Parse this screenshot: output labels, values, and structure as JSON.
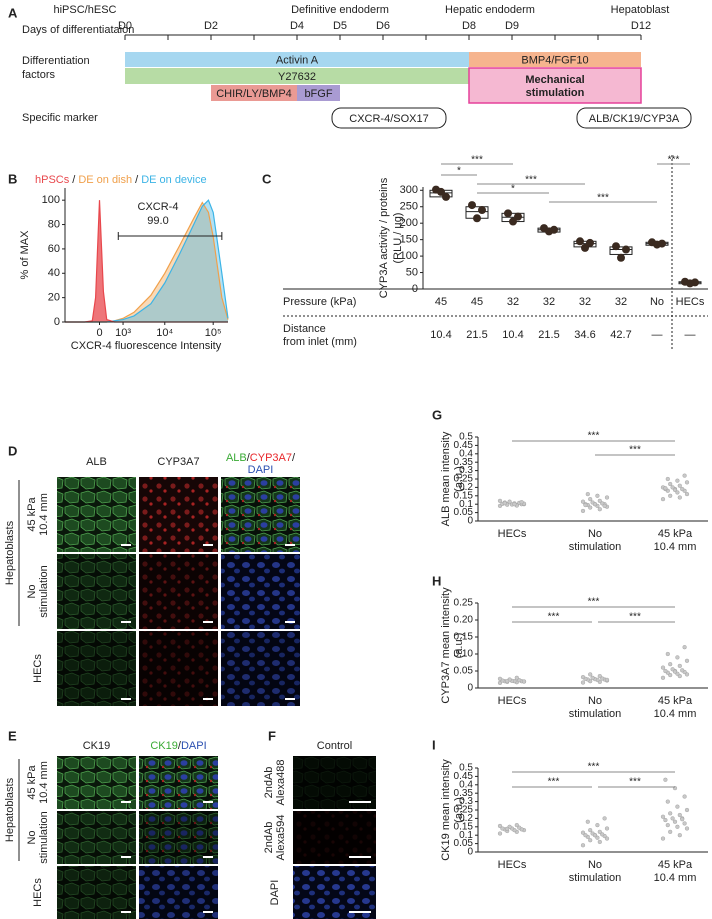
{
  "figure": {
    "panel_letters": [
      "A",
      "B",
      "C",
      "D",
      "E",
      "F",
      "G",
      "H",
      "I"
    ],
    "panel_a": {
      "stages": [
        "hiPSC/hESC",
        "Definitive endoderm",
        "Hepatic endoderm",
        "Hepatoblast"
      ],
      "days_label": "Days of differentiataion",
      "days": [
        "D0",
        "D2",
        "D4",
        "D5",
        "D6",
        "D8",
        "D9",
        "D12"
      ],
      "factors_label": [
        "Differentiation",
        "factors"
      ],
      "factors": [
        "Activin A",
        "BMP4/FGF10",
        "Y27632",
        "CHIR/LY/BMP4",
        "bFGF"
      ],
      "mechanical": [
        "Mechanical",
        "stimulation"
      ],
      "marker_label": "Specific marker",
      "markers": [
        "CXCR-4/SOX17",
        "ALB/CK19/CYP3A"
      ]
    },
    "panel_d": {
      "channels": [
        "ALB",
        "CYP3A7"
      ],
      "merge": [
        "ALB",
        "/",
        "CYP3A7",
        "/",
        "DAPI"
      ],
      "group_label": "Hepatoblasts",
      "rows": [
        [
          "45 kPa",
          "10.4 mm"
        ],
        [
          "No",
          "stimulation"
        ],
        [
          "HECs"
        ]
      ]
    },
    "panel_e": {
      "channels": [
        "CK19"
      ],
      "merge": [
        "CK19",
        "/",
        "DAPI"
      ],
      "group_label": "Hepatoblasts",
      "rows": [
        [
          "45 kPa",
          "10.4 mm"
        ],
        [
          "No",
          "stimulation"
        ],
        [
          "HECs"
        ]
      ]
    },
    "panel_f": {
      "title": "Control",
      "rows": [
        [
          "2ndAb",
          "Alexa488"
        ],
        [
          "2ndAb",
          "Alexa594"
        ],
        [
          "DAPI"
        ]
      ]
    }
  },
  "chart_data": [
    {
      "type": "area",
      "legend_separator": "/",
      "ylabel": "% of MAX",
      "xlabel": "CXCR-4 fluorescence Intensity",
      "x_scale": "logicle",
      "x": [
        -2000,
        -500,
        -200,
        -100,
        0,
        100,
        200,
        500,
        1000,
        2000,
        5000,
        10000,
        20000,
        40000,
        60000,
        80000,
        100000,
        150000,
        200000
      ],
      "series": [
        {
          "name": "hPSCs",
          "color": "#e8474c",
          "values": [
            0,
            0,
            1,
            20,
            100,
            25,
            2,
            0,
            0,
            0,
            0,
            0,
            0,
            0,
            0,
            0,
            0,
            0,
            0
          ]
        },
        {
          "name": "DE on dish",
          "color": "#f0a04b",
          "values": [
            0,
            0,
            0,
            0,
            0,
            0,
            0,
            1,
            3,
            8,
            22,
            40,
            62,
            85,
            98,
            90,
            70,
            20,
            2
          ]
        },
        {
          "name": "DE on device",
          "color": "#3cb4e6",
          "values": [
            0,
            0,
            0,
            0,
            0,
            0,
            0,
            1,
            2,
            5,
            15,
            32,
            55,
            80,
            95,
            100,
            90,
            40,
            3
          ]
        }
      ],
      "xlim": [
        -2000,
        200000
      ],
      "xticks": [
        0,
        {
          "value": 1000,
          "label": "10³"
        },
        {
          "value": 10000,
          "label": "10⁴"
        },
        {
          "value": 100000,
          "label": "10⁵"
        }
      ],
      "ylim": [
        0,
        110
      ],
      "yticks": [
        0,
        20,
        40,
        60,
        80,
        100
      ],
      "annotation": [
        "CXCR-4",
        "99.0"
      ],
      "gate": [
        700,
        150000
      ]
    },
    {
      "type": "box",
      "ylabel": [
        "CYP3A activity / proteins",
        "(RLU / µg)"
      ],
      "ylim": [
        0,
        310
      ],
      "yticks": [
        0,
        50,
        100,
        150,
        200,
        250,
        300
      ],
      "points": [
        [
          302,
          280,
          295
        ],
        [
          255,
          240,
          215
        ],
        [
          230,
          220,
          205
        ],
        [
          185,
          180,
          175
        ],
        [
          145,
          140,
          125
        ],
        [
          130,
          120,
          95
        ],
        [
          142,
          138,
          135
        ],
        [
          22,
          20,
          17
        ]
      ],
      "box_low": [
        280,
        215,
        205,
        173,
        128,
        105,
        133,
        16
      ],
      "box_high": [
        300,
        250,
        230,
        185,
        145,
        128,
        142,
        22
      ],
      "median": [
        292,
        235,
        218,
        180,
        138,
        120,
        138,
        20
      ],
      "significance": [
        "***",
        "*",
        "***",
        "*",
        "***",
        "***"
      ],
      "pressure_label": "Pressure (kPa)",
      "pressure": [
        "45",
        "45",
        "32",
        "32",
        "32",
        "32",
        "No",
        "HECs"
      ],
      "distance_label": [
        "Distance",
        "from inlet (mm)"
      ],
      "distance": [
        "10.4",
        "21.5",
        "10.4",
        "21.5",
        "34.6",
        "42.7",
        "—",
        "—"
      ],
      "color": "#3a2a20"
    },
    {
      "type": "swarm",
      "ylabel": [
        "ALB mean intensity",
        "(a.u.)"
      ],
      "categories": [
        [
          "HECs"
        ],
        [
          "No",
          "stimulation"
        ],
        [
          "45 kPa",
          "10.4 mm"
        ]
      ],
      "values": [
        [
          0.09,
          0.095,
          0.1,
          0.1,
          0.105,
          0.11,
          0.1,
          0.098,
          0.102,
          0.108,
          0.115,
          0.12,
          0.092,
          0.097,
          0.103,
          0.1,
          0.106,
          0.112
        ],
        [
          0.06,
          0.07,
          0.08,
          0.085,
          0.09,
          0.095,
          0.1,
          0.1,
          0.1,
          0.105,
          0.11,
          0.115,
          0.12,
          0.13,
          0.14,
          0.15,
          0.16,
          0.09,
          0.1,
          0.095
        ],
        [
          0.13,
          0.14,
          0.15,
          0.16,
          0.17,
          0.18,
          0.18,
          0.19,
          0.19,
          0.19,
          0.2,
          0.2,
          0.21,
          0.22,
          0.23,
          0.24,
          0.25,
          0.27,
          0.185,
          0.195
        ]
      ],
      "color": "#c8c8c8",
      "ylim": [
        0,
        0.5
      ],
      "yticks": [
        0,
        0.05,
        0.1,
        0.15,
        0.2,
        0.25,
        0.3,
        0.35,
        0.4,
        0.45,
        0.5
      ],
      "significance": [
        "***",
        "***"
      ]
    },
    {
      "type": "swarm",
      "ylabel": [
        "CYP3A7 mean intensity",
        "(a.u.)"
      ],
      "categories": [
        [
          "HECs"
        ],
        [
          "No",
          "stimulation"
        ],
        [
          "45 kPa",
          "10.4 mm"
        ]
      ],
      "values": [
        [
          0.015,
          0.017,
          0.018,
          0.019,
          0.02,
          0.02,
          0.02,
          0.021,
          0.022,
          0.023,
          0.025,
          0.027,
          0.03,
          0.02,
          0.019
        ],
        [
          0.016,
          0.018,
          0.02,
          0.022,
          0.024,
          0.025,
          0.025,
          0.026,
          0.027,
          0.028,
          0.03,
          0.032,
          0.035,
          0.04,
          0.024
        ],
        [
          0.03,
          0.035,
          0.038,
          0.04,
          0.042,
          0.045,
          0.047,
          0.05,
          0.05,
          0.052,
          0.055,
          0.06,
          0.065,
          0.07,
          0.08,
          0.09,
          0.1,
          0.12,
          0.048
        ]
      ],
      "color": "#c8c8c8",
      "ylim": [
        0,
        0.25
      ],
      "yticks": [
        0,
        0.05,
        {
          "value": 0.1,
          "label": "0.10"
        },
        0.15,
        {
          "value": 0.2,
          "label": "0.20"
        },
        0.25
      ],
      "significance": [
        "***",
        "***",
        "***"
      ]
    },
    {
      "type": "swarm",
      "ylabel": [
        "CK19 mean intensity",
        "(a.u.)"
      ],
      "categories": [
        [
          "HECs"
        ],
        [
          "No",
          "stimulation"
        ],
        [
          "45 kPa",
          "10.4 mm"
        ]
      ],
      "values": [
        [
          0.11,
          0.12,
          0.125,
          0.13,
          0.13,
          0.135,
          0.135,
          0.14,
          0.14,
          0.145,
          0.15,
          0.155,
          0.16,
          0.138
        ],
        [
          0.04,
          0.06,
          0.07,
          0.08,
          0.085,
          0.09,
          0.095,
          0.1,
          0.1,
          0.105,
          0.11,
          0.115,
          0.12,
          0.13,
          0.14,
          0.16,
          0.18,
          0.2,
          0.1
        ],
        [
          0.08,
          0.1,
          0.12,
          0.14,
          0.15,
          0.16,
          0.17,
          0.18,
          0.19,
          0.2,
          0.2,
          0.21,
          0.22,
          0.23,
          0.25,
          0.27,
          0.3,
          0.33,
          0.38,
          0.43,
          0.195
        ]
      ],
      "color": "#c8c8c8",
      "ylim": [
        0,
        0.5
      ],
      "yticks": [
        0,
        0.05,
        0.1,
        0.15,
        0.2,
        0.25,
        0.3,
        0.35,
        0.4,
        0.45,
        0.5
      ],
      "significance": [
        "***",
        "***",
        "***"
      ]
    }
  ]
}
